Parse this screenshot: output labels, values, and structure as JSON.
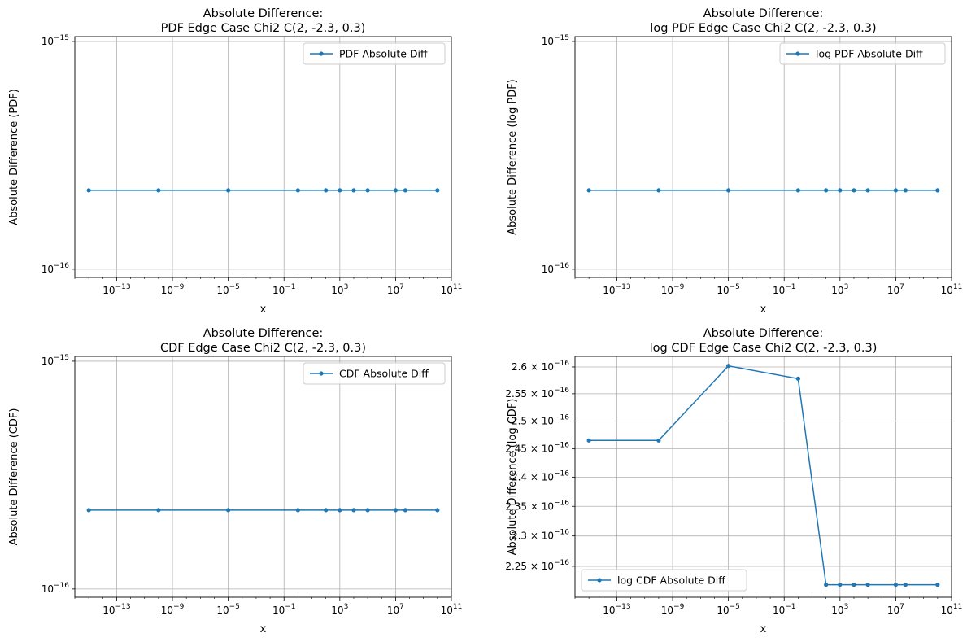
{
  "chart_data": [
    {
      "type": "line",
      "title_line1": "Absolute Difference:",
      "title_line2": "PDF Edge Case Chi2 C(2, -2.3, 0.3)",
      "xlabel": "x",
      "ylabel": "Absolute Difference (PDF)",
      "xscale": "log",
      "yscale": "log",
      "xlim": [
        1e-16,
        100000000000.0
      ],
      "ylim": [
        9.2e-17,
        1.05e-15
      ],
      "xticks": [
        1e-13,
        1e-09,
        1e-05,
        0.1,
        1000,
        10000000.0,
        100000000000.0
      ],
      "xtick_labels": [
        [
          "10",
          "−13"
        ],
        [
          "10",
          "−9"
        ],
        [
          "10",
          "−5"
        ],
        [
          "10",
          "−1"
        ],
        [
          "10",
          "3"
        ],
        [
          "10",
          "7"
        ],
        [
          "10",
          "11"
        ]
      ],
      "yticks": [
        1e-16,
        1e-15
      ],
      "ytick_labels": [
        [
          "10",
          "−16"
        ],
        [
          "10",
          "−15"
        ]
      ],
      "grid": true,
      "legend_position": "top-right",
      "series": [
        {
          "name": "PDF Absolute Diff",
          "color": "#1f77b4",
          "x": [
            1e-15,
            1e-10,
            1e-05,
            1,
            100,
            1000,
            10000,
            100000,
            10000000,
            50000000,
            10000000000.0
          ],
          "y": [
            2.22e-16,
            2.22e-16,
            2.22e-16,
            2.22e-16,
            2.22e-16,
            2.22e-16,
            2.22e-16,
            2.22e-16,
            2.22e-16,
            2.22e-16,
            2.22e-16
          ]
        }
      ]
    },
    {
      "type": "line",
      "title_line1": "Absolute Difference:",
      "title_line2": "log PDF Edge Case Chi2 C(2, -2.3, 0.3)",
      "xlabel": "x",
      "ylabel": "Absolute Difference (log PDF)",
      "xscale": "log",
      "yscale": "log",
      "xlim": [
        1e-16,
        100000000000.0
      ],
      "ylim": [
        9.2e-17,
        1.05e-15
      ],
      "xticks": [
        1e-13,
        1e-09,
        1e-05,
        0.1,
        1000,
        10000000.0,
        100000000000.0
      ],
      "xtick_labels": [
        [
          "10",
          "−13"
        ],
        [
          "10",
          "−9"
        ],
        [
          "10",
          "−5"
        ],
        [
          "10",
          "−1"
        ],
        [
          "10",
          "3"
        ],
        [
          "10",
          "7"
        ],
        [
          "10",
          "11"
        ]
      ],
      "yticks": [
        1e-16,
        1e-15
      ],
      "ytick_labels": [
        [
          "10",
          "−16"
        ],
        [
          "10",
          "−15"
        ]
      ],
      "grid": true,
      "legend_position": "top-right",
      "series": [
        {
          "name": "log PDF Absolute Diff",
          "color": "#1f77b4",
          "x": [
            1e-15,
            1e-10,
            1e-05,
            1,
            100,
            1000,
            10000,
            100000,
            10000000,
            50000000,
            10000000000.0
          ],
          "y": [
            2.22e-16,
            2.22e-16,
            2.22e-16,
            2.22e-16,
            2.22e-16,
            2.22e-16,
            2.22e-16,
            2.22e-16,
            2.22e-16,
            2.22e-16,
            2.22e-16
          ]
        }
      ]
    },
    {
      "type": "line",
      "title_line1": "Absolute Difference:",
      "title_line2": "CDF Edge Case Chi2 C(2, -2.3, 0.3)",
      "xlabel": "x",
      "ylabel": "Absolute Difference (CDF)",
      "xscale": "log",
      "yscale": "log",
      "xlim": [
        1e-16,
        100000000000.0
      ],
      "ylim": [
        9.2e-17,
        1.05e-15
      ],
      "xticks": [
        1e-13,
        1e-09,
        1e-05,
        0.1,
        1000,
        10000000.0,
        100000000000.0
      ],
      "xtick_labels": [
        [
          "10",
          "−13"
        ],
        [
          "10",
          "−9"
        ],
        [
          "10",
          "−5"
        ],
        [
          "10",
          "−1"
        ],
        [
          "10",
          "3"
        ],
        [
          "10",
          "7"
        ],
        [
          "10",
          "11"
        ]
      ],
      "yticks": [
        1e-16,
        1e-15
      ],
      "ytick_labels": [
        [
          "10",
          "−16"
        ],
        [
          "10",
          "−15"
        ]
      ],
      "grid": true,
      "legend_position": "top-right",
      "series": [
        {
          "name": "CDF Absolute Diff",
          "color": "#1f77b4",
          "x": [
            1e-15,
            1e-10,
            1e-05,
            1,
            100,
            1000,
            10000,
            100000,
            10000000,
            50000000,
            10000000000.0
          ],
          "y": [
            2.22e-16,
            2.22e-16,
            2.22e-16,
            2.22e-16,
            2.22e-16,
            2.22e-16,
            2.22e-16,
            2.22e-16,
            2.22e-16,
            2.22e-16,
            2.22e-16
          ]
        }
      ]
    },
    {
      "type": "line",
      "title_line1": "Absolute Difference:",
      "title_line2": "log CDF Edge Case Chi2 C(2, -2.3, 0.3)",
      "xlabel": "x",
      "ylabel": "Absolute Difference (log CDF)",
      "xscale": "log",
      "yscale": "log",
      "xlim": [
        1e-16,
        100000000000.0
      ],
      "ylim": [
        2.2e-16,
        2.62e-16
      ],
      "xticks": [
        1e-13,
        1e-09,
        1e-05,
        0.1,
        1000,
        10000000.0,
        100000000000.0
      ],
      "xtick_labels": [
        [
          "10",
          "−13"
        ],
        [
          "10",
          "−9"
        ],
        [
          "10",
          "−5"
        ],
        [
          "10",
          "−1"
        ],
        [
          "10",
          "3"
        ],
        [
          "10",
          "7"
        ],
        [
          "10",
          "11"
        ]
      ],
      "yticks": [
        2.25e-16,
        2.3e-16,
        2.35e-16,
        2.4e-16,
        2.45e-16,
        2.5e-16,
        2.55e-16,
        2.6e-16
      ],
      "ytick_labels": [
        [
          "2.25 × 10",
          "−16"
        ],
        [
          "2.3 × 10",
          "−16"
        ],
        [
          "2.35 × 10",
          "−16"
        ],
        [
          "2.4 × 10",
          "−16"
        ],
        [
          "2.45 × 10",
          "−16"
        ],
        [
          "2.5 × 10",
          "−16"
        ],
        [
          "2.55 × 10",
          "−16"
        ],
        [
          "2.6 × 10",
          "−16"
        ]
      ],
      "grid": true,
      "legend_position": "bottom-left",
      "series": [
        {
          "name": "log CDF Absolute Diff",
          "color": "#1f77b4",
          "x": [
            1e-15,
            1e-10,
            1e-05,
            1,
            100,
            1000,
            10000,
            100000,
            10000000,
            50000000,
            10000000000.0
          ],
          "y": [
            2.465e-16,
            2.465e-16,
            2.602e-16,
            2.578e-16,
            2.22e-16,
            2.22e-16,
            2.22e-16,
            2.22e-16,
            2.22e-16,
            2.22e-16,
            2.22e-16
          ]
        }
      ]
    }
  ]
}
